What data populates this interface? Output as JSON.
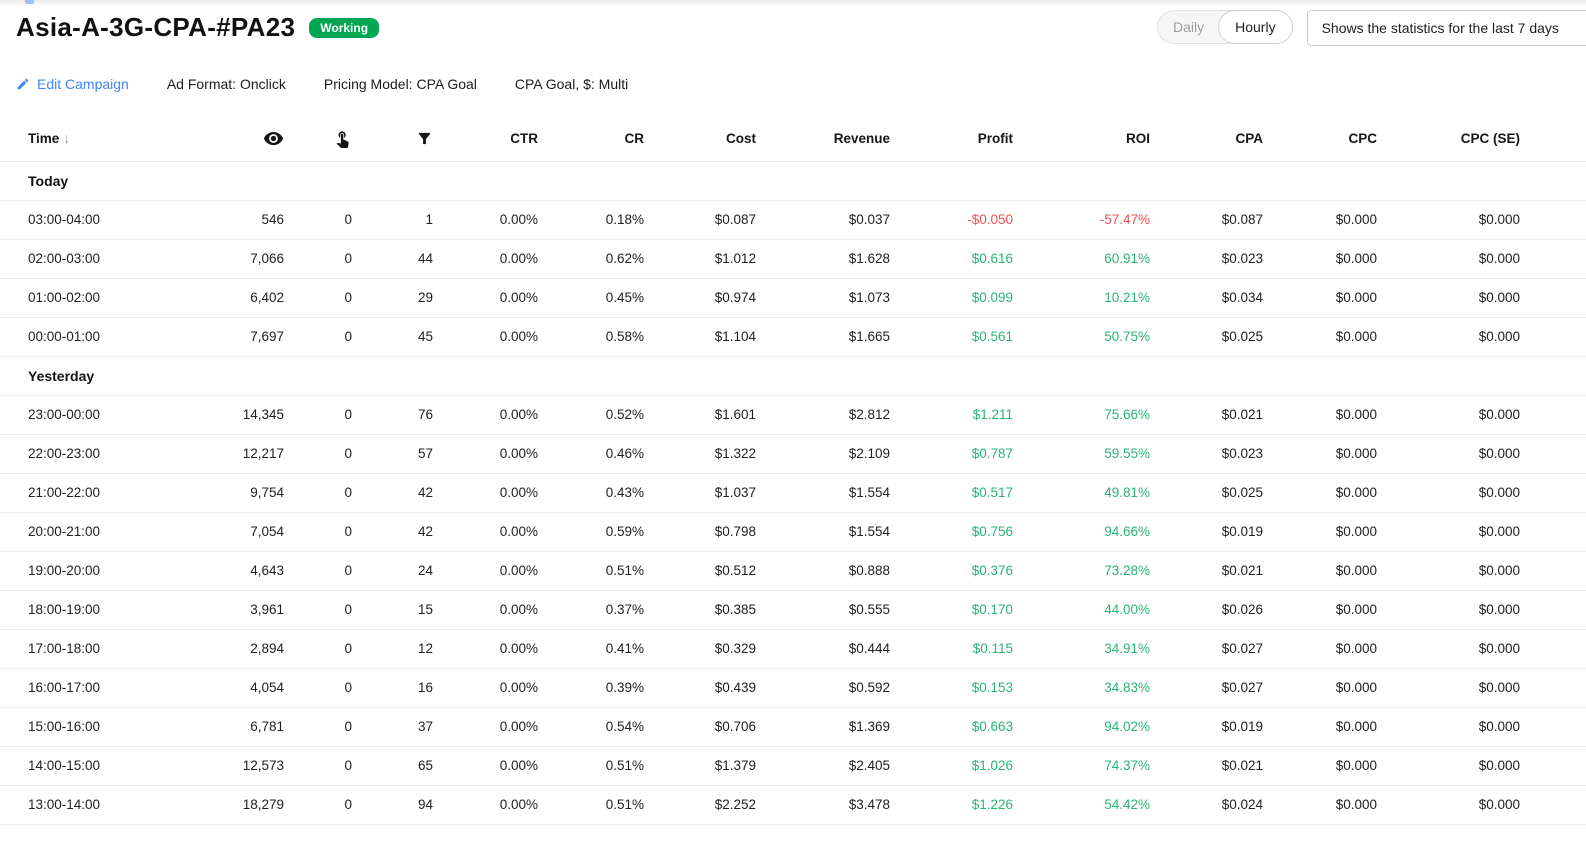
{
  "colors": {
    "accent_blue": "#4285f4",
    "badge_green": "#00a651",
    "positive_green": "#2ab573",
    "negative_red": "#f05152"
  },
  "header": {
    "title": "Asia-A-3G-CPA-#PA23",
    "status_badge": "Working",
    "interval_toggle": {
      "options": [
        "Daily",
        "Hourly"
      ],
      "selected": "Hourly"
    },
    "stats_range": "Shows the statistics for the last 7 days"
  },
  "campaign_bar": {
    "edit_label": "Edit Campaign",
    "ad_format": "Ad Format: Onclick",
    "pricing_model": "Pricing Model: CPA Goal",
    "cpa_goal": "CPA Goal, $: Multi"
  },
  "table": {
    "headers": {
      "time": "Time",
      "sort_arrow": "↓",
      "impressions_icon": "eye-icon",
      "clicks_icon": "tap-icon",
      "conversions_icon": "funnel-icon",
      "ctr": "CTR",
      "cr": "CR",
      "cost": "Cost",
      "revenue": "Revenue",
      "profit": "Profit",
      "roi": "ROI",
      "cpa": "CPA",
      "cpc": "CPC",
      "cpc_se": "CPC (SE)"
    },
    "sections": [
      {
        "label": "Today",
        "rows": [
          {
            "time": "03:00-04:00",
            "impressions": "546",
            "clicks": "0",
            "conversions": "1",
            "ctr": "0.00%",
            "cr": "0.18%",
            "cost": "$0.087",
            "revenue": "$0.037",
            "profit": "-$0.050",
            "roi": "-57.47%",
            "cpa": "$0.087",
            "cpc": "$0.000",
            "cpc_se": "$0.000",
            "trend": "negative"
          },
          {
            "time": "02:00-03:00",
            "impressions": "7,066",
            "clicks": "0",
            "conversions": "44",
            "ctr": "0.00%",
            "cr": "0.62%",
            "cost": "$1.012",
            "revenue": "$1.628",
            "profit": "$0.616",
            "roi": "60.91%",
            "cpa": "$0.023",
            "cpc": "$0.000",
            "cpc_se": "$0.000",
            "trend": "positive"
          },
          {
            "time": "01:00-02:00",
            "impressions": "6,402",
            "clicks": "0",
            "conversions": "29",
            "ctr": "0.00%",
            "cr": "0.45%",
            "cost": "$0.974",
            "revenue": "$1.073",
            "profit": "$0.099",
            "roi": "10.21%",
            "cpa": "$0.034",
            "cpc": "$0.000",
            "cpc_se": "$0.000",
            "trend": "positive"
          },
          {
            "time": "00:00-01:00",
            "impressions": "7,697",
            "clicks": "0",
            "conversions": "45",
            "ctr": "0.00%",
            "cr": "0.58%",
            "cost": "$1.104",
            "revenue": "$1.665",
            "profit": "$0.561",
            "roi": "50.75%",
            "cpa": "$0.025",
            "cpc": "$0.000",
            "cpc_se": "$0.000",
            "trend": "positive"
          }
        ]
      },
      {
        "label": "Yesterday",
        "rows": [
          {
            "time": "23:00-00:00",
            "impressions": "14,345",
            "clicks": "0",
            "conversions": "76",
            "ctr": "0.00%",
            "cr": "0.52%",
            "cost": "$1.601",
            "revenue": "$2.812",
            "profit": "$1.211",
            "roi": "75.66%",
            "cpa": "$0.021",
            "cpc": "$0.000",
            "cpc_se": "$0.000",
            "trend": "positive"
          },
          {
            "time": "22:00-23:00",
            "impressions": "12,217",
            "clicks": "0",
            "conversions": "57",
            "ctr": "0.00%",
            "cr": "0.46%",
            "cost": "$1.322",
            "revenue": "$2.109",
            "profit": "$0.787",
            "roi": "59.55%",
            "cpa": "$0.023",
            "cpc": "$0.000",
            "cpc_se": "$0.000",
            "trend": "positive"
          },
          {
            "time": "21:00-22:00",
            "impressions": "9,754",
            "clicks": "0",
            "conversions": "42",
            "ctr": "0.00%",
            "cr": "0.43%",
            "cost": "$1.037",
            "revenue": "$1.554",
            "profit": "$0.517",
            "roi": "49.81%",
            "cpa": "$0.025",
            "cpc": "$0.000",
            "cpc_se": "$0.000",
            "trend": "positive"
          },
          {
            "time": "20:00-21:00",
            "impressions": "7,054",
            "clicks": "0",
            "conversions": "42",
            "ctr": "0.00%",
            "cr": "0.59%",
            "cost": "$0.798",
            "revenue": "$1.554",
            "profit": "$0.756",
            "roi": "94.66%",
            "cpa": "$0.019",
            "cpc": "$0.000",
            "cpc_se": "$0.000",
            "trend": "positive"
          },
          {
            "time": "19:00-20:00",
            "impressions": "4,643",
            "clicks": "0",
            "conversions": "24",
            "ctr": "0.00%",
            "cr": "0.51%",
            "cost": "$0.512",
            "revenue": "$0.888",
            "profit": "$0.376",
            "roi": "73.28%",
            "cpa": "$0.021",
            "cpc": "$0.000",
            "cpc_se": "$0.000",
            "trend": "positive"
          },
          {
            "time": "18:00-19:00",
            "impressions": "3,961",
            "clicks": "0",
            "conversions": "15",
            "ctr": "0.00%",
            "cr": "0.37%",
            "cost": "$0.385",
            "revenue": "$0.555",
            "profit": "$0.170",
            "roi": "44.00%",
            "cpa": "$0.026",
            "cpc": "$0.000",
            "cpc_se": "$0.000",
            "trend": "positive"
          },
          {
            "time": "17:00-18:00",
            "impressions": "2,894",
            "clicks": "0",
            "conversions": "12",
            "ctr": "0.00%",
            "cr": "0.41%",
            "cost": "$0.329",
            "revenue": "$0.444",
            "profit": "$0.115",
            "roi": "34.91%",
            "cpa": "$0.027",
            "cpc": "$0.000",
            "cpc_se": "$0.000",
            "trend": "positive"
          },
          {
            "time": "16:00-17:00",
            "impressions": "4,054",
            "clicks": "0",
            "conversions": "16",
            "ctr": "0.00%",
            "cr": "0.39%",
            "cost": "$0.439",
            "revenue": "$0.592",
            "profit": "$0.153",
            "roi": "34.83%",
            "cpa": "$0.027",
            "cpc": "$0.000",
            "cpc_se": "$0.000",
            "trend": "positive"
          },
          {
            "time": "15:00-16:00",
            "impressions": "6,781",
            "clicks": "0",
            "conversions": "37",
            "ctr": "0.00%",
            "cr": "0.54%",
            "cost": "$0.706",
            "revenue": "$1.369",
            "profit": "$0.663",
            "roi": "94.02%",
            "cpa": "$0.019",
            "cpc": "$0.000",
            "cpc_se": "$0.000",
            "trend": "positive"
          },
          {
            "time": "14:00-15:00",
            "impressions": "12,573",
            "clicks": "0",
            "conversions": "65",
            "ctr": "0.00%",
            "cr": "0.51%",
            "cost": "$1.379",
            "revenue": "$2.405",
            "profit": "$1.026",
            "roi": "74.37%",
            "cpa": "$0.021",
            "cpc": "$0.000",
            "cpc_se": "$0.000",
            "trend": "positive"
          },
          {
            "time": "13:00-14:00",
            "impressions": "18,279",
            "clicks": "0",
            "conversions": "94",
            "ctr": "0.00%",
            "cr": "0.51%",
            "cost": "$2.252",
            "revenue": "$3.478",
            "profit": "$1.226",
            "roi": "54.42%",
            "cpa": "$0.024",
            "cpc": "$0.000",
            "cpc_se": "$0.000",
            "trend": "positive"
          }
        ]
      }
    ]
  }
}
